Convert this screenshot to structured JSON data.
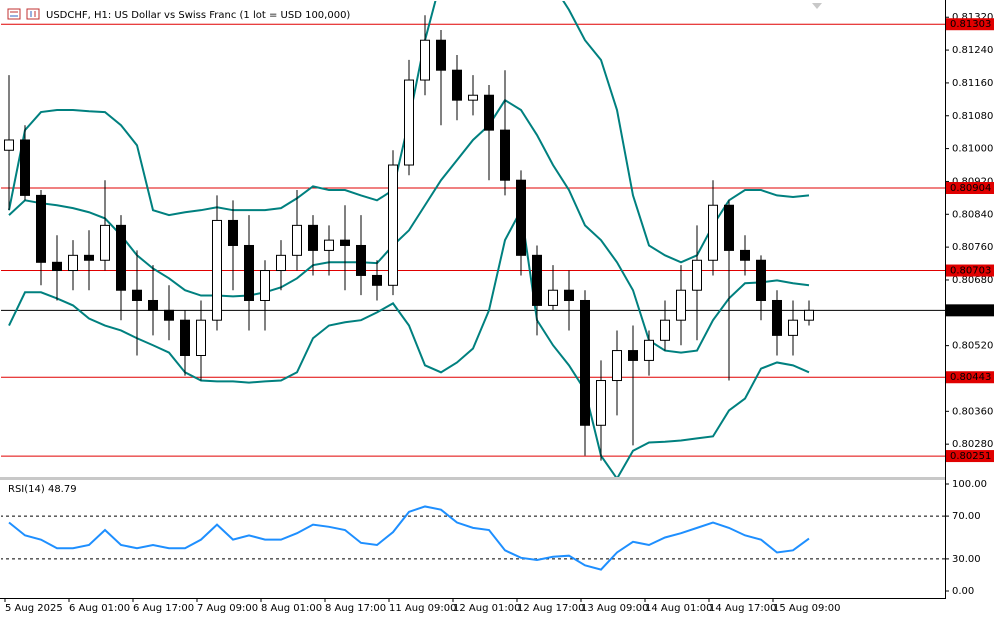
{
  "chart_data": [
    {
      "type": "candlestick",
      "title": "USDCHF, H1:  US Dollar vs Swiss Franc (1 lot = USD 100,000)",
      "categories": [
        "5 Aug 2025",
        null,
        null,
        null,
        "6 Aug 01:00",
        null,
        null,
        null,
        "6 Aug 17:00",
        null,
        null,
        null,
        "7 Aug 09:00",
        null,
        null,
        null,
        "8 Aug 01:00",
        null,
        null,
        null,
        "8 Aug 17:00",
        null,
        null,
        null,
        "11 Aug 09:00",
        null,
        null,
        null,
        "12 Aug 01:00",
        null,
        null,
        null,
        "12 Aug 17:00",
        null,
        null,
        null,
        "13 Aug 09:00",
        null,
        null,
        null,
        "14 Aug 01:00",
        null,
        null,
        null,
        "14 Aug 17:00",
        null,
        null,
        null,
        "15 Aug 09:00",
        null,
        null
      ],
      "open": [
        0.80996,
        0.81021,
        0.80886,
        0.80723,
        0.80703,
        0.8074,
        0.80728,
        0.80813,
        0.80655,
        0.8063,
        0.80606,
        0.80582,
        0.80496,
        0.80582,
        0.80825,
        0.80764,
        0.8063,
        0.80703,
        0.8074,
        0.80813,
        0.80752,
        0.80777,
        0.80764,
        0.80691,
        0.80667,
        0.8096,
        0.81167,
        0.81264,
        0.81191,
        0.81118,
        0.8113,
        0.81045,
        0.80923,
        0.8074,
        0.80618,
        0.80655,
        0.8063,
        0.80326,
        0.80435,
        0.80508,
        0.80484,
        0.80533,
        0.80582,
        0.80655,
        0.80728,
        0.80862,
        0.80752,
        0.80728,
        0.8063,
        0.80545,
        0.80582
      ],
      "high": [
        0.81179,
        0.81057,
        0.80899,
        0.80789,
        0.80777,
        0.80801,
        0.80923,
        0.80838,
        0.80752,
        0.80716,
        0.80667,
        0.80606,
        0.8063,
        0.80886,
        0.80874,
        0.80838,
        0.80728,
        0.80777,
        0.80899,
        0.80838,
        0.80813,
        0.80862,
        0.80838,
        0.80728,
        0.80996,
        0.81216,
        0.81325,
        0.81289,
        0.81228,
        0.81179,
        0.81155,
        0.81191,
        0.80947,
        0.80764,
        0.80716,
        0.80703,
        0.80655,
        0.80484,
        0.80557,
        0.80569,
        0.80557,
        0.8063,
        0.80716,
        0.80813,
        0.80923,
        0.80874,
        0.80789,
        0.8074,
        0.80655,
        0.8063,
        0.8063
      ],
      "low": [
        0.8085,
        0.80874,
        0.80667,
        0.8063,
        0.80655,
        0.80655,
        0.80703,
        0.80582,
        0.80496,
        0.80545,
        0.80533,
        0.80447,
        0.80435,
        0.80557,
        0.80655,
        0.80557,
        0.80557,
        0.80655,
        0.80703,
        0.80691,
        0.80691,
        0.80655,
        0.80643,
        0.8063,
        0.80643,
        0.80935,
        0.8113,
        0.81057,
        0.81069,
        0.81081,
        0.80923,
        0.80886,
        0.80691,
        0.80545,
        0.80606,
        0.80557,
        0.80252,
        0.8024,
        0.8035,
        0.80277,
        0.80447,
        0.80508,
        0.80521,
        0.80533,
        0.80691,
        0.80435,
        0.80691,
        0.80582,
        0.80496,
        0.80496,
        0.80569
      ],
      "close": [
        0.81021,
        0.80886,
        0.80723,
        0.80703,
        0.8074,
        0.80728,
        0.80813,
        0.80655,
        0.8063,
        0.80606,
        0.80582,
        0.80496,
        0.80582,
        0.80825,
        0.80764,
        0.8063,
        0.80703,
        0.8074,
        0.80813,
        0.80752,
        0.80777,
        0.80764,
        0.80691,
        0.80667,
        0.8096,
        0.81167,
        0.81264,
        0.81191,
        0.81118,
        0.8113,
        0.81045,
        0.80923,
        0.8074,
        0.80618,
        0.80655,
        0.8063,
        0.80326,
        0.80435,
        0.80508,
        0.80484,
        0.80533,
        0.80582,
        0.80655,
        0.80728,
        0.80862,
        0.80752,
        0.80728,
        0.8063,
        0.80545,
        0.80582,
        0.80606
      ],
      "up_color": "#ffffff",
      "down_color": "#000000",
      "bollinger": {
        "color": "#00807f",
        "upper": [
          0.8085,
          0.81045,
          0.81089,
          0.81094,
          0.81094,
          0.81091,
          0.81089,
          0.81057,
          0.81008,
          0.8085,
          0.80838,
          0.80845,
          0.8085,
          0.80857,
          0.8085,
          0.8085,
          0.8085,
          0.80855,
          0.80879,
          0.80908,
          0.80899,
          0.80899,
          0.80886,
          0.80874,
          0.80899,
          0.81069,
          0.81264,
          0.81411,
          0.81508,
          0.81557,
          0.81569,
          0.81557,
          0.81508,
          0.81447,
          0.81399,
          0.81338,
          0.81264,
          0.81216,
          0.81094,
          0.80886,
          0.80764,
          0.8074,
          0.80723,
          0.8074,
          0.80813,
          0.80874,
          0.80899,
          0.80899,
          0.80886,
          0.80882,
          0.80886
        ],
        "middle": [
          0.80838,
          0.80874,
          0.80867,
          0.80862,
          0.80855,
          0.80845,
          0.8083,
          0.80789,
          0.8074,
          0.80708,
          0.80684,
          0.80655,
          0.80642,
          0.80642,
          0.8064,
          0.80642,
          0.8065,
          0.80662,
          0.80684,
          0.80716,
          0.80723,
          0.80723,
          0.80723,
          0.80721,
          0.80764,
          0.80801,
          0.80862,
          0.80923,
          0.80972,
          0.81021,
          0.81057,
          0.81118,
          0.81094,
          0.81033,
          0.8096,
          0.80899,
          0.80813,
          0.80777,
          0.80723,
          0.80655,
          0.80533,
          0.80508,
          0.80503,
          0.80508,
          0.80582,
          0.80635,
          0.80672,
          0.80674,
          0.80679,
          0.80672,
          0.80667
        ],
        "lower": [
          0.80569,
          0.8065,
          0.8065,
          0.80635,
          0.80618,
          0.80586,
          0.80569,
          0.80557,
          0.80538,
          0.80521,
          0.80503,
          0.80455,
          0.80435,
          0.80433,
          0.80433,
          0.8043,
          0.80433,
          0.80435,
          0.80455,
          0.80538,
          0.80569,
          0.80577,
          0.80582,
          0.80601,
          0.80623,
          0.80569,
          0.80472,
          0.80455,
          0.80479,
          0.80513,
          0.80606,
          0.80777,
          0.8085,
          0.80582,
          0.80521,
          0.80472,
          0.80411,
          0.80252,
          0.80196,
          0.80264,
          0.80284,
          0.80286,
          0.80289,
          0.80294,
          0.80299,
          0.80362,
          0.80391,
          0.80464,
          0.80479,
          0.80472,
          0.80455
        ]
      },
      "levels": [
        0.81303,
        0.80904,
        0.80703,
        0.80443,
        0.80251
      ],
      "level_color": "#e00000",
      "current_price": 0.80606,
      "ylim": [
        0.802,
        0.81362
      ],
      "yticks": [
        {
          "value": 0.8132,
          "label": "0.81320"
        },
        {
          "value": 0.8124,
          "label": "0.81240"
        },
        {
          "value": 0.8116,
          "label": "0.81160"
        },
        {
          "value": 0.8108,
          "label": "0.81080"
        },
        {
          "value": 0.81,
          "label": "0.81000"
        },
        {
          "value": 0.8092,
          "label": "0.80920"
        },
        {
          "value": 0.8084,
          "label": "0.80840"
        },
        {
          "value": 0.8076,
          "label": "0.80760"
        },
        {
          "value": 0.8068,
          "label": "0.80680"
        },
        {
          "value": 0.8052,
          "label": "0.80520"
        },
        {
          "value": 0.8036,
          "label": "0.80360"
        },
        {
          "value": 0.8028,
          "label": "0.80280"
        }
      ]
    },
    {
      "type": "line",
      "title": "RSI(14) 48.79",
      "color": "#1e8fff",
      "values": [
        64,
        52,
        48,
        40,
        40,
        43,
        57,
        43,
        40,
        43,
        40,
        40,
        48,
        62,
        48,
        52,
        48,
        48,
        54,
        62,
        60,
        57,
        45,
        43,
        55,
        74,
        79,
        76,
        64,
        59,
        57,
        38,
        31,
        29,
        32,
        33,
        24,
        20,
        36,
        46,
        43,
        50,
        54,
        59,
        64,
        59,
        52,
        48,
        36,
        38,
        49
      ],
      "levels": [
        70,
        30
      ],
      "ylim": [
        0,
        100
      ],
      "yticks": [
        {
          "value": 100,
          "label": "100.00"
        },
        {
          "value": 70,
          "label": "70.00"
        },
        {
          "value": 30,
          "label": "30.00"
        },
        {
          "value": 0,
          "label": "0.00"
        }
      ]
    }
  ]
}
